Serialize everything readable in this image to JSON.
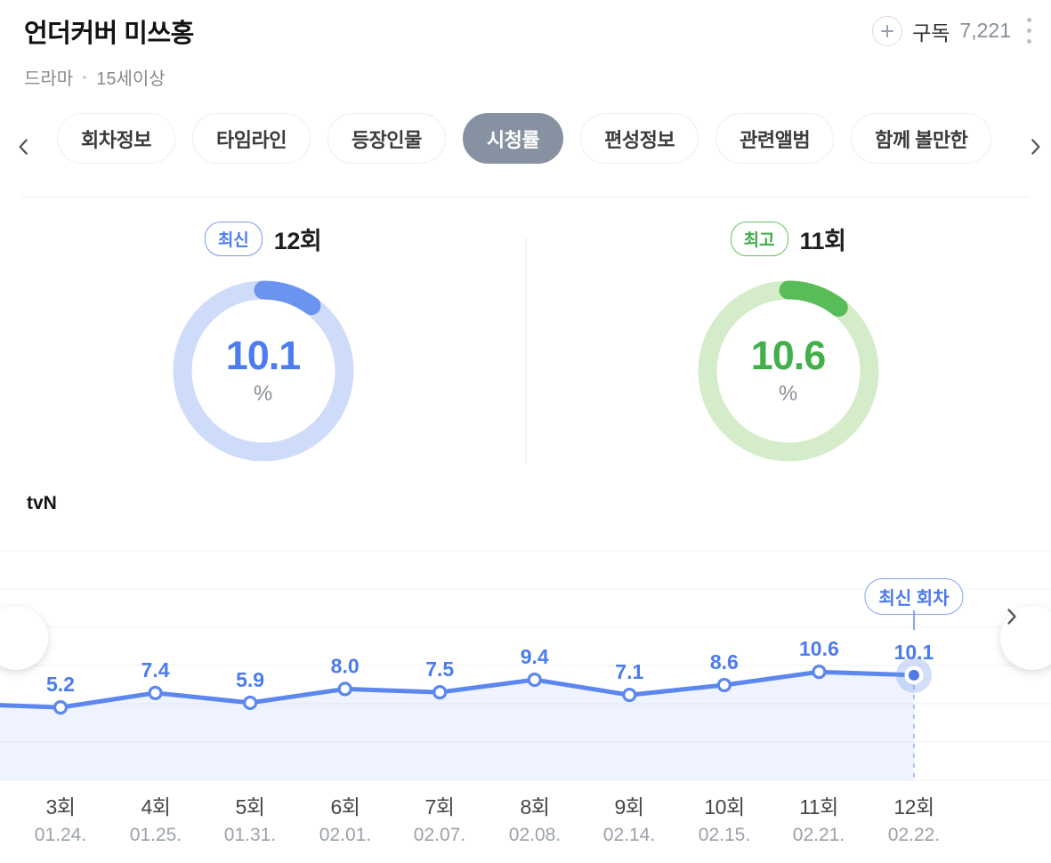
{
  "header": {
    "title": "언더커버 미쓰홍",
    "genre": "드라마",
    "age_rating": "15세이상",
    "subscribe_label": "구독",
    "subscribe_count": "7,221"
  },
  "tabs": {
    "items": [
      {
        "label": "회차정보",
        "selected": false
      },
      {
        "label": "타임라인",
        "selected": false
      },
      {
        "label": "등장인물",
        "selected": false
      },
      {
        "label": "시청률",
        "selected": true
      },
      {
        "label": "편성정보",
        "selected": false
      },
      {
        "label": "관련앨범",
        "selected": false
      },
      {
        "label": "함께 볼만한",
        "selected": false
      }
    ]
  },
  "summary": {
    "latest": {
      "badge": "최신",
      "episode": "12회",
      "value": "10.1",
      "unit": "%",
      "percent": 10.1,
      "arc_color": "#6b93f0",
      "track_color": "#cfdcf9",
      "value_color": "#4d7bf0"
    },
    "best": {
      "badge": "최고",
      "episode": "11회",
      "value": "10.6",
      "unit": "%",
      "percent": 10.6,
      "arc_color": "#58bd58",
      "track_color": "#d4ecca",
      "value_color": "#41b04a"
    }
  },
  "chart": {
    "channel": "tvN",
    "annotation": "최신 회차"
  },
  "chart_data": {
    "type": "line",
    "series_name": "tvN",
    "unit": "%",
    "title": "시청률",
    "categories": [
      "3회",
      "4회",
      "5회",
      "6회",
      "7회",
      "8회",
      "9회",
      "10회",
      "11회",
      "12회"
    ],
    "x_dates": [
      "01.24.",
      "01.25.",
      "01.31.",
      "02.01.",
      "02.07.",
      "02.08.",
      "02.14.",
      "02.15.",
      "02.21.",
      "02.22."
    ],
    "values": [
      5.2,
      7.4,
      5.9,
      8.0,
      7.5,
      9.4,
      7.1,
      8.6,
      10.6,
      10.1
    ],
    "highlight_index": 9,
    "annotation": "최신 회차",
    "grid": true,
    "legend_position": "none",
    "line_color": "#5b87ee",
    "area_color": "rgba(91,135,238,0.10)",
    "label_color": "#4b7bed"
  }
}
